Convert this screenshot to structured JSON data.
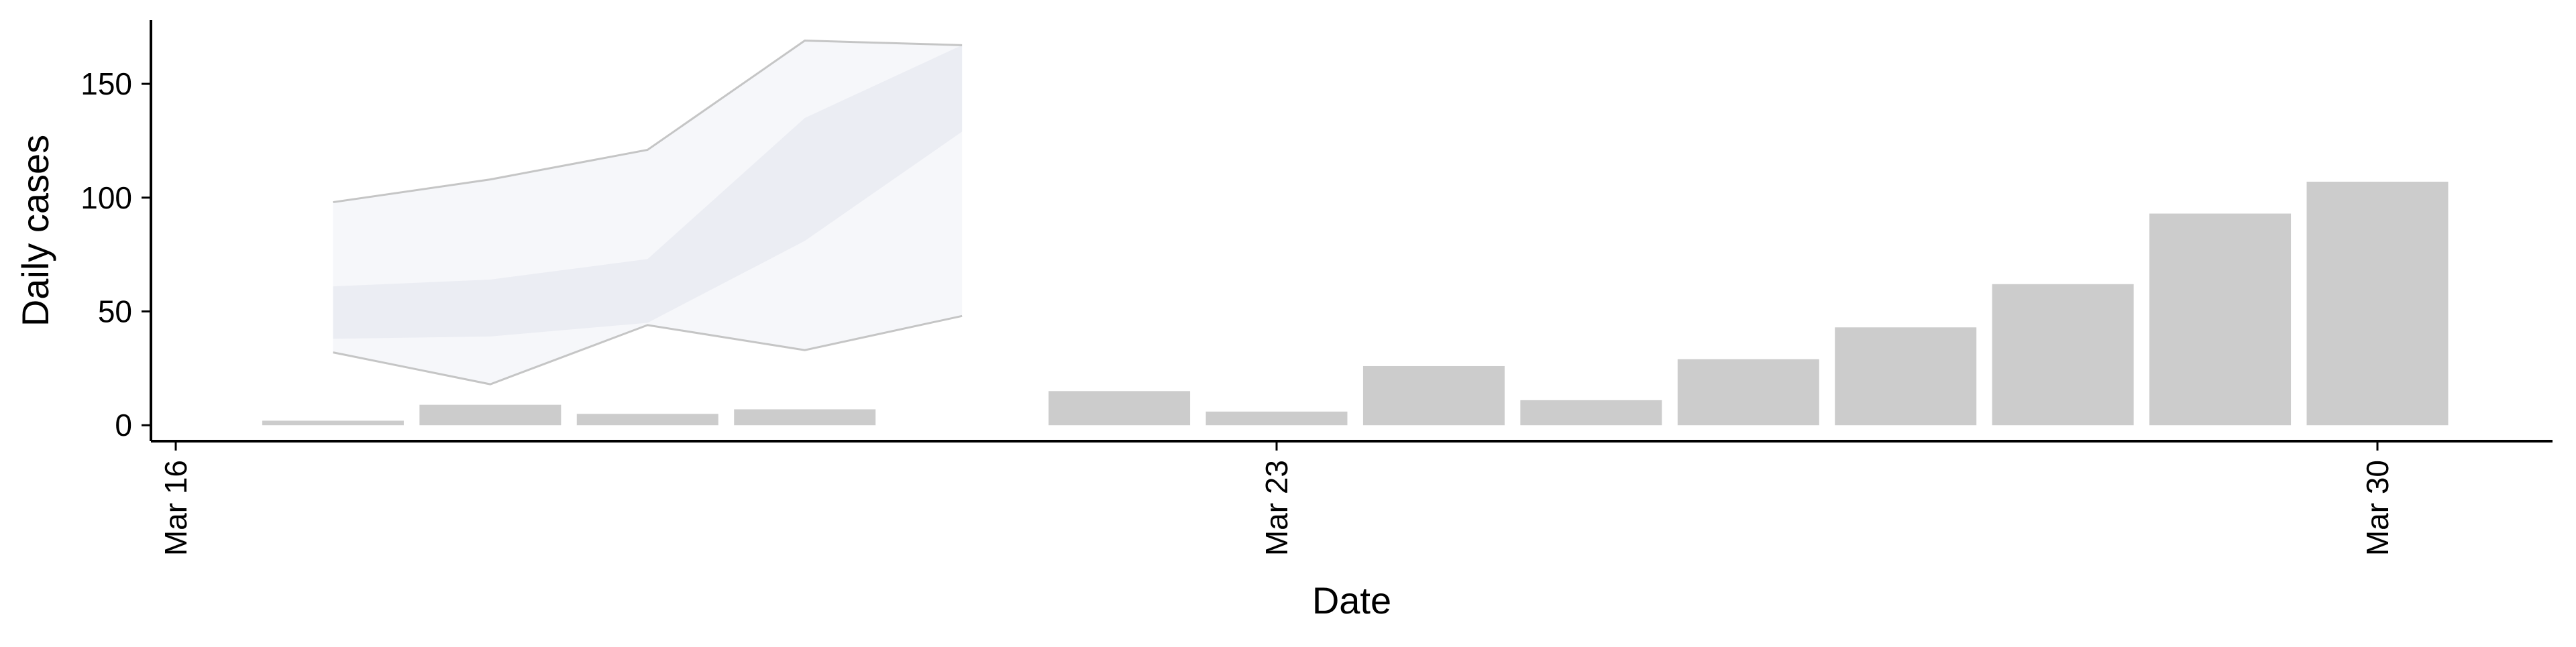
{
  "chart_data": {
    "type": "bar",
    "xlabel": "Date",
    "ylabel": "Daily cases",
    "ylim": [
      -7,
      178
    ],
    "x_tick_labels": [
      "Mar 16",
      "Mar 23",
      "Mar 30"
    ],
    "y_tick_labels": [
      "0",
      "50",
      "100",
      "150"
    ],
    "grid": false,
    "legend": "none",
    "bar_color": "#cccccc",
    "band_color": "#dde0ea",
    "band_line_color": "#b8b8b8",
    "bars": [
      {
        "date": "Mar 17",
        "value": 2
      },
      {
        "date": "Mar 18",
        "value": 9
      },
      {
        "date": "Mar 19",
        "value": 5
      },
      {
        "date": "Mar 20",
        "value": 7
      },
      {
        "date": "Mar 22",
        "value": 15
      },
      {
        "date": "Mar 23",
        "value": 6
      },
      {
        "date": "Mar 24",
        "value": 26
      },
      {
        "date": "Mar 25",
        "value": 11
      },
      {
        "date": "Mar 26",
        "value": 29
      },
      {
        "date": "Mar 27",
        "value": 43
      },
      {
        "date": "Mar 28",
        "value": 62
      },
      {
        "date": "Mar 29",
        "value": 93
      },
      {
        "date": "Mar 30",
        "value": 107
      }
    ],
    "forecast_band": {
      "dates": [
        "Mar 17",
        "Mar 18",
        "Mar 19",
        "Mar 20",
        "Mar 21"
      ],
      "outer_upper": [
        98,
        108,
        121,
        169,
        167
      ],
      "outer_lower": [
        32,
        18,
        44,
        33,
        48
      ],
      "inner_upper": [
        61,
        64,
        73,
        135,
        167
      ],
      "inner_lower": [
        38,
        39,
        45,
        81,
        129
      ]
    }
  }
}
